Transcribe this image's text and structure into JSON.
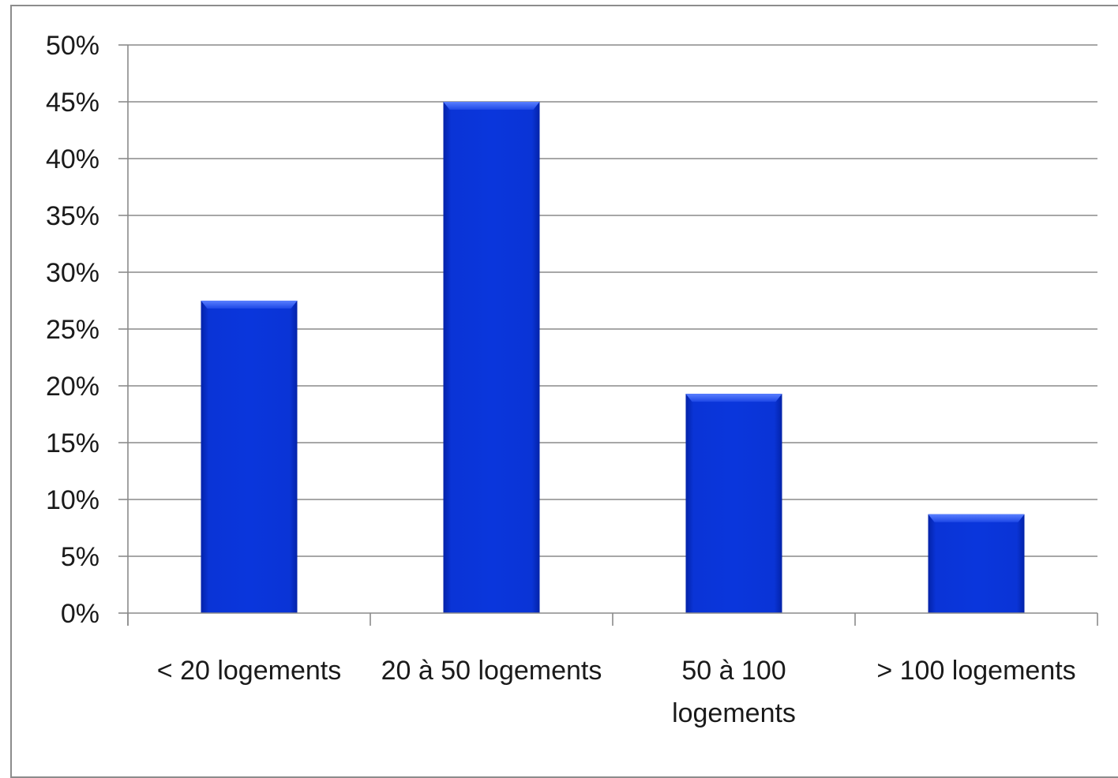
{
  "chart_data": {
    "type": "bar",
    "categories": [
      "< 20 logements",
      "20 à 50 logements",
      "50 à 100 logements",
      "> 100 logements"
    ],
    "category_lines": [
      [
        "< 20 logements"
      ],
      [
        "20 à 50 logements"
      ],
      [
        "50 à 100",
        "logements"
      ],
      [
        "> 100 logements"
      ]
    ],
    "values": [
      27.5,
      45,
      19.3,
      8.7
    ],
    "ylim": [
      0,
      50
    ],
    "yticks": [
      0,
      5,
      10,
      15,
      20,
      25,
      30,
      35,
      40,
      45,
      50
    ],
    "ytick_labels": [
      "0%",
      "5%",
      "10%",
      "15%",
      "20%",
      "25%",
      "30%",
      "35%",
      "40%",
      "45%",
      "50%"
    ],
    "grid": true,
    "legend": "none",
    "title": "",
    "xlabel": "",
    "ylabel": "",
    "colors": {
      "bar": "#0a34d6",
      "bar_dark": "#0322a8",
      "bar_light": "#3f66f0",
      "grid": "#8a8a8a"
    }
  }
}
